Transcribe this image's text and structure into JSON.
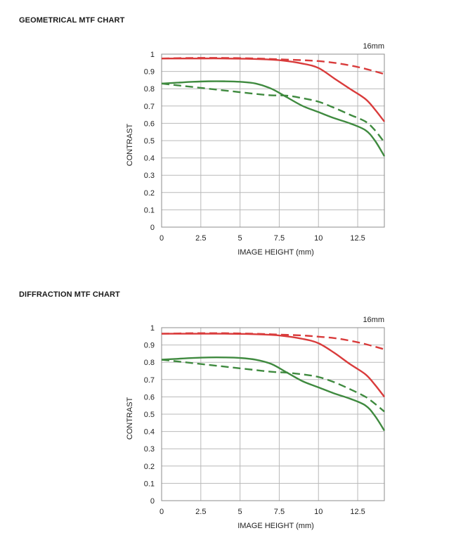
{
  "page": {
    "sections": [
      {
        "title": "GEOMETRICAL MTF CHART"
      },
      {
        "title": "DIFFRACTION MTF CHART"
      }
    ]
  },
  "chart_data": [
    {
      "type": "line",
      "title": "GEOMETRICAL MTF CHART",
      "annotation": "16mm",
      "xlabel": "IMAGE HEIGHT (mm)",
      "ylabel": "CONTRAST",
      "xlim": [
        0,
        14.2
      ],
      "ylim": [
        0,
        1
      ],
      "xticks": [
        0,
        2.5,
        5,
        7.5,
        10,
        12.5
      ],
      "xtick_labels": [
        "0",
        "2.5",
        "5",
        "7.5",
        "10",
        "12.5"
      ],
      "yticks": [
        0,
        0.1,
        0.2,
        0.3,
        0.4,
        0.5,
        0.6,
        0.7,
        0.8,
        0.9,
        1
      ],
      "ytick_labels": [
        "0",
        "0.1",
        "0.2",
        "0.3",
        "0.4",
        "0.5",
        "0.6",
        "0.7",
        "0.8",
        "0.9",
        "1"
      ],
      "grid": true,
      "legend": "none",
      "series": [
        {
          "color": "#d93b3b",
          "style": "solid",
          "x": [
            0,
            2,
            4,
            6,
            7.5,
            9,
            10,
            11,
            12,
            13,
            13.6,
            14.2
          ],
          "y": [
            0.975,
            0.975,
            0.975,
            0.972,
            0.965,
            0.945,
            0.92,
            0.86,
            0.8,
            0.74,
            0.68,
            0.61
          ]
        },
        {
          "color": "#d93b3b",
          "style": "dashed",
          "x": [
            0,
            2,
            4,
            6,
            7.5,
            9,
            10,
            11,
            12,
            13,
            14.2
          ],
          "y": [
            0.975,
            0.978,
            0.978,
            0.975,
            0.97,
            0.965,
            0.96,
            0.95,
            0.935,
            0.915,
            0.885
          ]
        },
        {
          "color": "#3f8a3f",
          "style": "solid",
          "x": [
            0,
            1,
            2,
            3,
            4,
            5,
            6,
            7,
            8,
            9,
            10,
            11,
            12,
            13,
            13.6,
            14.2
          ],
          "y": [
            0.83,
            0.835,
            0.84,
            0.843,
            0.843,
            0.84,
            0.83,
            0.8,
            0.75,
            0.7,
            0.665,
            0.63,
            0.6,
            0.56,
            0.5,
            0.41
          ]
        },
        {
          "color": "#3f8a3f",
          "style": "dashed",
          "x": [
            0,
            1,
            2,
            3,
            4,
            5,
            6,
            7,
            8,
            9,
            10,
            11,
            12,
            13,
            13.6,
            14.2
          ],
          "y": [
            0.83,
            0.82,
            0.81,
            0.8,
            0.79,
            0.78,
            0.77,
            0.762,
            0.76,
            0.745,
            0.725,
            0.69,
            0.65,
            0.61,
            0.56,
            0.49
          ]
        }
      ]
    },
    {
      "type": "line",
      "title": "DIFFRACTION MTF CHART",
      "annotation": "16mm",
      "xlabel": "IMAGE HEIGHT (mm)",
      "ylabel": "CONTRAST",
      "xlim": [
        0,
        14.2
      ],
      "ylim": [
        0,
        1
      ],
      "xticks": [
        0,
        2.5,
        5,
        7.5,
        10,
        12.5
      ],
      "xtick_labels": [
        "0",
        "2.5",
        "5",
        "7.5",
        "10",
        "12.5"
      ],
      "yticks": [
        0,
        0.1,
        0.2,
        0.3,
        0.4,
        0.5,
        0.6,
        0.7,
        0.8,
        0.9,
        1
      ],
      "ytick_labels": [
        "0",
        "0.1",
        "0.2",
        "0.3",
        "0.4",
        "0.5",
        "0.6",
        "0.7",
        "0.8",
        "0.9",
        "1"
      ],
      "grid": true,
      "legend": "none",
      "series": [
        {
          "color": "#d93b3b",
          "style": "solid",
          "x": [
            0,
            2,
            4,
            6,
            7.5,
            9,
            10,
            11,
            12,
            13,
            13.6,
            14.2
          ],
          "y": [
            0.965,
            0.965,
            0.965,
            0.962,
            0.955,
            0.935,
            0.91,
            0.855,
            0.79,
            0.73,
            0.67,
            0.6
          ]
        },
        {
          "color": "#d93b3b",
          "style": "dashed",
          "x": [
            0,
            2,
            4,
            6,
            7.5,
            9,
            10,
            11,
            12,
            13,
            14.2
          ],
          "y": [
            0.965,
            0.968,
            0.968,
            0.965,
            0.96,
            0.955,
            0.948,
            0.94,
            0.925,
            0.905,
            0.875
          ]
        },
        {
          "color": "#3f8a3f",
          "style": "solid",
          "x": [
            0,
            1,
            2,
            3,
            4,
            5,
            6,
            7,
            8,
            9,
            10,
            11,
            12,
            13,
            13.6,
            14.2
          ],
          "y": [
            0.815,
            0.82,
            0.825,
            0.828,
            0.828,
            0.825,
            0.815,
            0.79,
            0.74,
            0.69,
            0.655,
            0.62,
            0.59,
            0.55,
            0.49,
            0.405
          ]
        },
        {
          "color": "#3f8a3f",
          "style": "dashed",
          "x": [
            0,
            1,
            2,
            3,
            4,
            5,
            6,
            7,
            8,
            9,
            10,
            11,
            12,
            13,
            13.6,
            14.2
          ],
          "y": [
            0.815,
            0.805,
            0.795,
            0.785,
            0.775,
            0.765,
            0.755,
            0.745,
            0.74,
            0.73,
            0.715,
            0.685,
            0.645,
            0.6,
            0.56,
            0.515
          ]
        }
      ]
    }
  ]
}
